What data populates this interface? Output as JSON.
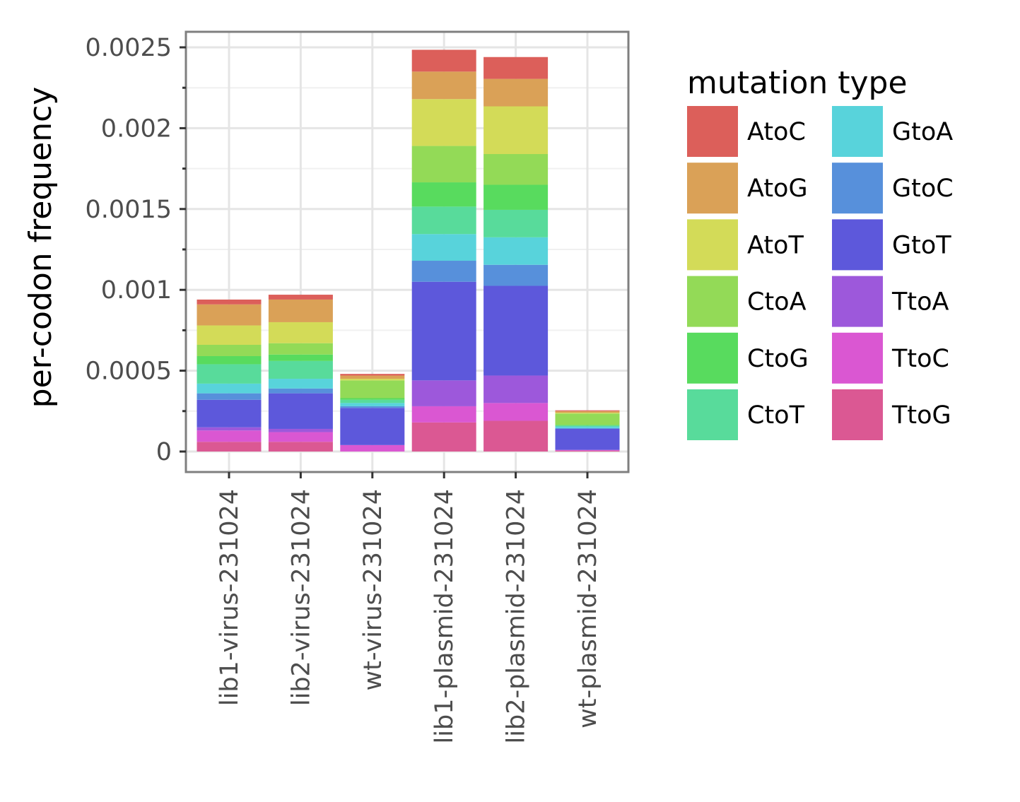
{
  "chart_data": {
    "type": "bar",
    "stacked": true,
    "ylabel": "per-codon frequency",
    "xlabel": "",
    "ylim": [
      -0.00012,
      0.0026
    ],
    "yticks": [
      0,
      0.0005,
      0.001,
      0.0015,
      0.002,
      0.0025
    ],
    "ytick_labels": [
      "0",
      "0.0005",
      "0.001",
      "0.0015",
      "0.002",
      "0.0025"
    ],
    "grid": true,
    "legend": {
      "title": "mutation type",
      "position": "right",
      "columns": 2
    },
    "categories": [
      "lib1-virus-231024",
      "lib2-virus-231024",
      "wt-virus-231024",
      "lib1-plasmid-231024",
      "lib2-plasmid-231024",
      "wt-plasmid-231024"
    ],
    "series": [
      {
        "name": "AtoC",
        "color": "#dc5f5a",
        "values": [
          3e-05,
          3e-05,
          1e-05,
          0.000135,
          0.000135,
          5e-06
        ]
      },
      {
        "name": "AtoG",
        "color": "#daa157",
        "values": [
          0.00013,
          0.00014,
          2e-05,
          0.00017,
          0.00017,
          1e-05
        ]
      },
      {
        "name": "AtoT",
        "color": "#d3db58",
        "values": [
          0.00012,
          0.00013,
          1e-05,
          0.00029,
          0.000295,
          5e-06
        ]
      },
      {
        "name": "CtoA",
        "color": "#93da57",
        "values": [
          7e-05,
          7e-05,
          0.00011,
          0.000225,
          0.00019,
          7e-05
        ]
      },
      {
        "name": "CtoG",
        "color": "#58db5e",
        "values": [
          5e-05,
          4e-05,
          1e-05,
          0.00015,
          0.000155,
          5e-06
        ]
      },
      {
        "name": "CtoT",
        "color": "#58db9b",
        "values": [
          0.00012,
          0.00011,
          2e-05,
          0.00017,
          0.00017,
          5e-06
        ]
      },
      {
        "name": "GtoA",
        "color": "#58d3db",
        "values": [
          6e-05,
          6e-05,
          2e-05,
          0.000165,
          0.00017,
          1e-05
        ]
      },
      {
        "name": "GtoC",
        "color": "#5790db",
        "values": [
          4e-05,
          3e-05,
          1e-05,
          0.00013,
          0.00013,
          5e-06
        ]
      },
      {
        "name": "GtoT",
        "color": "#5d58db",
        "values": [
          0.00017,
          0.00022,
          0.00023,
          0.00061,
          0.000555,
          0.00013
        ]
      },
      {
        "name": "TtoA",
        "color": "#9d58db",
        "values": [
          2e-05,
          2e-05,
          0.0,
          0.00016,
          0.00017,
          0.0
        ]
      },
      {
        "name": "TtoC",
        "color": "#da57d2",
        "values": [
          7e-05,
          6e-05,
          4e-05,
          0.0001,
          0.00011,
          5e-06
        ]
      },
      {
        "name": "TtoG",
        "color": "#db5893",
        "values": [
          6e-05,
          6e-05,
          0.0,
          0.00018,
          0.00019,
          5e-06
        ]
      }
    ]
  }
}
